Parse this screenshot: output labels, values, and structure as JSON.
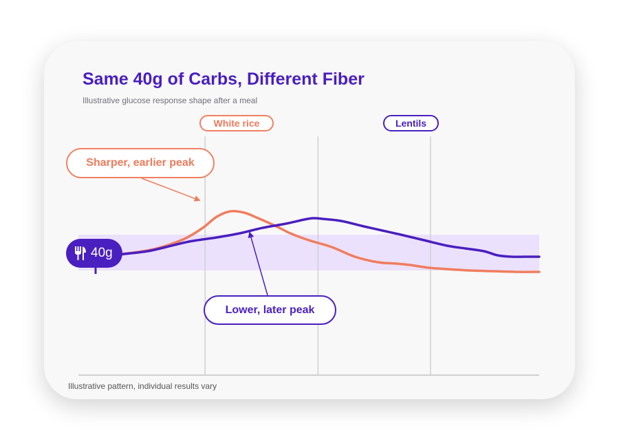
{
  "title": "Same 40g of Carbs, Different Fiber",
  "subtitle": "Illustrative glucose response shape after a meal",
  "footnote": "Illustrative pattern, individual results vary",
  "colors": {
    "rice": "#f07d5e",
    "lentils": "#4a1fbf",
    "band": "#ebe1fc",
    "gridline": "#d0d0d0"
  },
  "meal_marker": {
    "label": "40g",
    "icon": "fork-knife-icon"
  },
  "callouts": {
    "rice": "Sharper, earlier peak",
    "lentils": "Lower, later peak"
  },
  "chart_data": {
    "type": "line",
    "x_range": [
      0,
      100
    ],
    "y_range": [
      0,
      100
    ],
    "grid_x": [
      27.5,
      52,
      76.4
    ],
    "band": [
      31,
      57
    ],
    "series": [
      {
        "name": "White rice",
        "color": "#f07d5e",
        "x": [
          0,
          6,
          12,
          17,
          23,
          27,
          30,
          33,
          36,
          39,
          43,
          46,
          50,
          55,
          60,
          65,
          69,
          72,
          76,
          80,
          85,
          90,
          95,
          100
        ],
        "y": [
          40,
          42,
          44,
          47,
          54,
          62,
          70,
          74,
          73,
          69,
          63,
          58,
          53,
          48,
          41,
          37,
          36,
          35,
          33,
          32,
          31,
          30.5,
          30,
          30
        ]
      },
      {
        "name": "Lentils",
        "color": "#4a1fbf",
        "x": [
          0,
          5,
          10,
          15,
          19,
          24,
          30,
          35,
          40,
          45,
          49,
          51,
          53,
          57,
          62,
          66,
          70,
          75,
          80,
          84,
          88,
          91,
          94,
          97,
          100
        ],
        "y": [
          38,
          41,
          43,
          45,
          48,
          52,
          55,
          58,
          62,
          65,
          68,
          69,
          68.5,
          67,
          63,
          60,
          57,
          53,
          49,
          47,
          45,
          42,
          41,
          41,
          41
        ]
      }
    ]
  }
}
